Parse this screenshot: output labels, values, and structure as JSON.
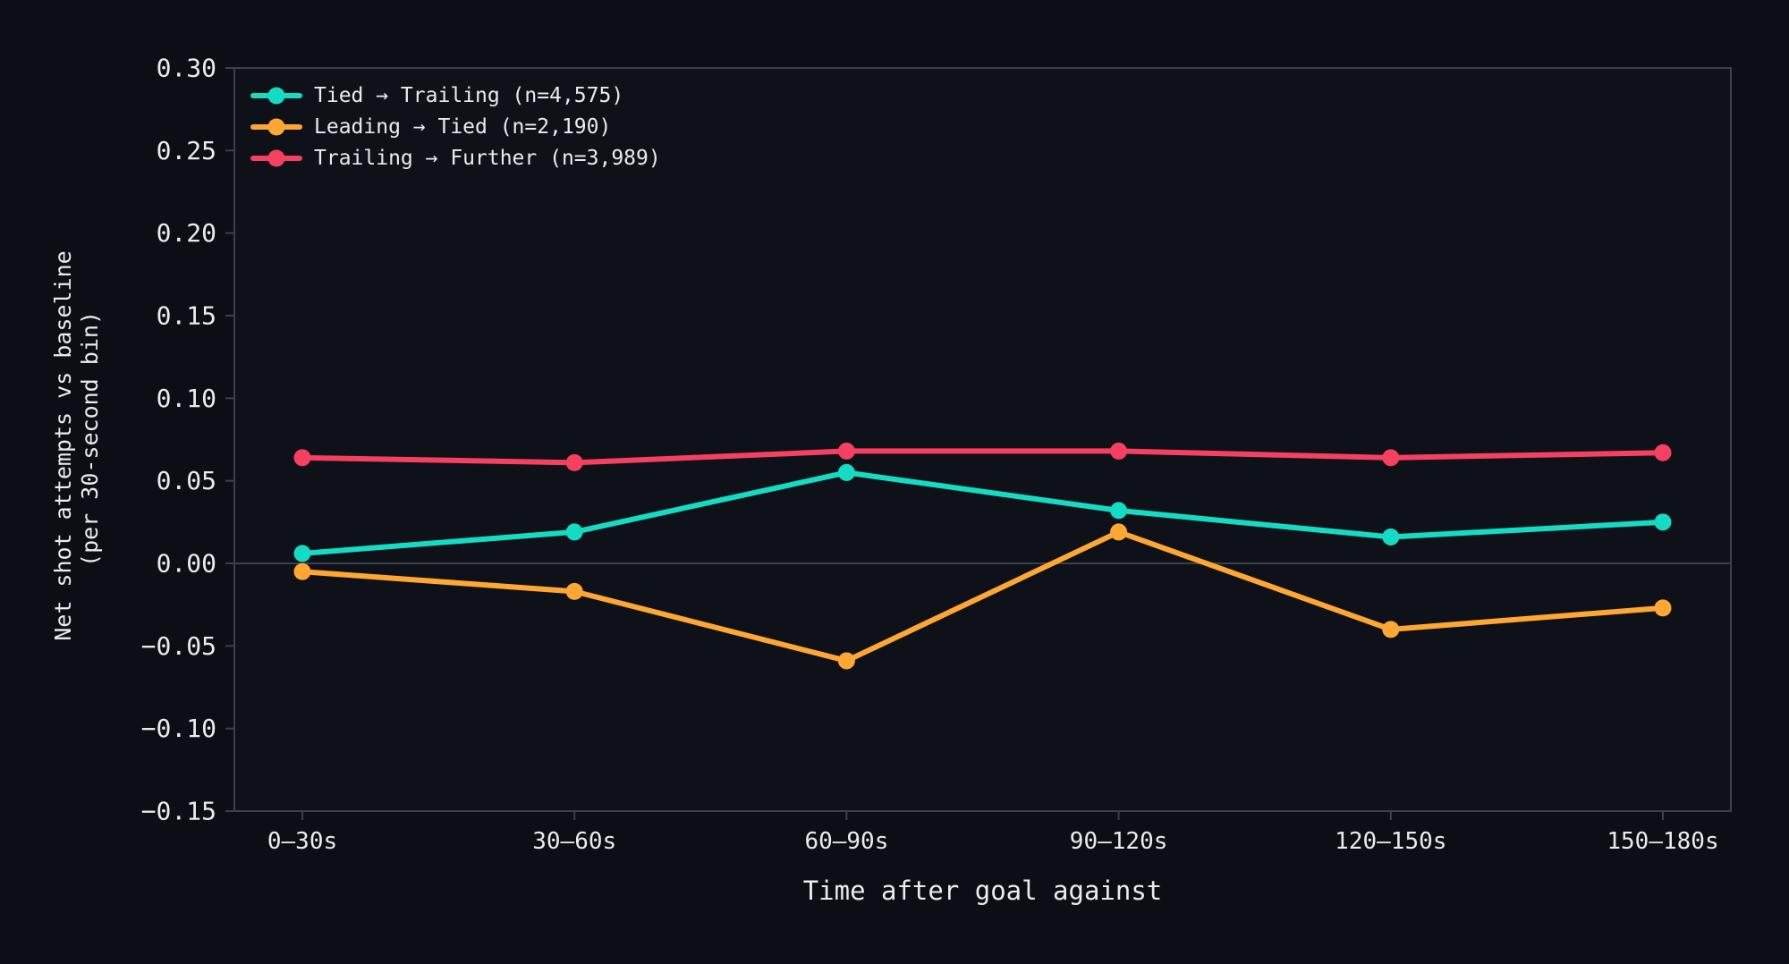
{
  "chart_data": {
    "type": "line",
    "title": "",
    "xlabel": "Time after goal against",
    "ylabel_lines": [
      "Net shot attempts vs baseline",
      "(per 30-second bin)"
    ],
    "categories": [
      "0–30s",
      "30–60s",
      "60–90s",
      "90–120s",
      "120–150s",
      "150–180s"
    ],
    "ylim": [
      -0.15,
      0.3
    ],
    "yticks": [
      {
        "value": -0.15,
        "label": "−0.15"
      },
      {
        "value": -0.1,
        "label": "−0.10"
      },
      {
        "value": -0.05,
        "label": "−0.05"
      },
      {
        "value": 0.0,
        "label": "0.00"
      },
      {
        "value": 0.05,
        "label": "0.05"
      },
      {
        "value": 0.1,
        "label": "0.10"
      },
      {
        "value": 0.15,
        "label": "0.15"
      },
      {
        "value": 0.2,
        "label": "0.20"
      },
      {
        "value": 0.25,
        "label": "0.25"
      },
      {
        "value": 0.3,
        "label": "0.30"
      }
    ],
    "grid": false,
    "zero_line": true,
    "legend_position": "top-left",
    "series": [
      {
        "name": "Tied → Trailing (n=4,575)",
        "color": "#14dcc4",
        "values": [
          0.006,
          0.019,
          0.055,
          0.032,
          0.016,
          0.025
        ]
      },
      {
        "name": "Leading → Tied (n=2,190)",
        "color": "#ffa733",
        "values": [
          -0.005,
          -0.017,
          -0.059,
          0.019,
          -0.04,
          -0.027
        ]
      },
      {
        "name": "Trailing → Further (n=3,989)",
        "color": "#f5405f",
        "values": [
          0.064,
          0.061,
          0.068,
          0.068,
          0.064,
          0.067
        ]
      }
    ],
    "colors": {
      "background": "#0b0e14",
      "plot_background": "#0e1118",
      "axis": "#3a404c",
      "text": "#e8ecf0"
    }
  }
}
